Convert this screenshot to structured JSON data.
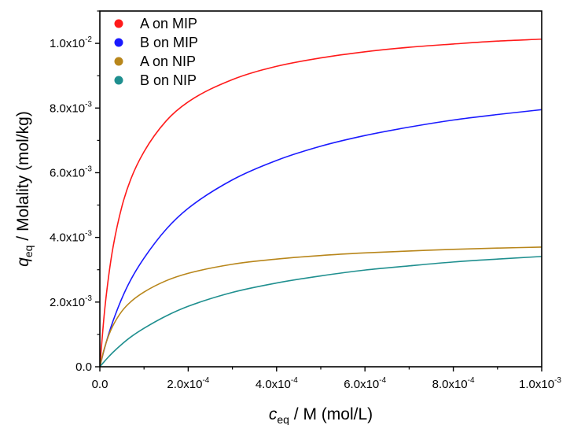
{
  "chart_data": {
    "type": "line",
    "xlabel": {
      "main": "c",
      "sub": "eq",
      "rest": " / M (mol/L)"
    },
    "ylabel": {
      "main": "q",
      "sub": "eq",
      "rest": " / Molality (mol/kg)"
    },
    "xlim": [
      0,
      0.001
    ],
    "ylim": [
      0,
      0.011
    ],
    "grid": false,
    "legend_position": "top-left",
    "xticks": [
      {
        "value": 0,
        "base": "0.0",
        "exp": ""
      },
      {
        "value": 0.0002,
        "base": "2.0x10",
        "exp": "-4"
      },
      {
        "value": 0.0004,
        "base": "4.0x10",
        "exp": "-4"
      },
      {
        "value": 0.0006,
        "base": "6.0x10",
        "exp": "-4"
      },
      {
        "value": 0.0008,
        "base": "8.0x10",
        "exp": "-4"
      },
      {
        "value": 0.001,
        "base": "1.0x10",
        "exp": "-3"
      }
    ],
    "yticks": [
      {
        "value": 0,
        "base": "0.0",
        "exp": ""
      },
      {
        "value": 0.002,
        "base": "2.0x10",
        "exp": "-3"
      },
      {
        "value": 0.004,
        "base": "4.0x10",
        "exp": "-3"
      },
      {
        "value": 0.006,
        "base": "6.0x10",
        "exp": "-3"
      },
      {
        "value": 0.008,
        "base": "8.0x10",
        "exp": "-3"
      },
      {
        "value": 0.01,
        "base": "1.0x10",
        "exp": "-2"
      }
    ],
    "x": [
      0,
      1e-05,
      2e-05,
      3e-05,
      5e-05,
      7e-05,
      0.0001,
      0.00015,
      0.0002,
      0.0003,
      0.0004,
      0.0005,
      0.0006,
      0.0007,
      0.0008,
      0.0009,
      0.001
    ],
    "series": [
      {
        "name": "A on MIP",
        "color": "#ff1a1a",
        "values": [
          0,
          0.00163,
          0.00281,
          0.00371,
          0.00496,
          0.0058,
          0.00665,
          0.0076,
          0.00819,
          0.00888,
          0.00929,
          0.00955,
          0.00974,
          0.00988,
          0.00998,
          0.01007,
          0.01013
        ]
      },
      {
        "name": "B on MIP",
        "color": "#1a1aff",
        "values": [
          0,
          0.00054,
          0.00101,
          0.00142,
          0.00212,
          0.00269,
          0.00336,
          0.00425,
          0.0049,
          0.00578,
          0.00638,
          0.00682,
          0.00715,
          0.00741,
          0.00763,
          0.0078,
          0.00795
        ]
      },
      {
        "name": "A on NIP",
        "color": "#b8861b",
        "values": [
          0,
          0.00056,
          0.00097,
          0.00128,
          0.00172,
          0.00201,
          0.00231,
          0.00266,
          0.00289,
          0.00317,
          0.00333,
          0.00344,
          0.00352,
          0.00358,
          0.00363,
          0.00367,
          0.0037
        ]
      },
      {
        "name": "B on NIP",
        "color": "#1f8f8f",
        "values": [
          0,
          0.00016,
          0.00031,
          0.00045,
          0.0007,
          0.00092,
          0.00119,
          0.00157,
          0.00187,
          0.0023,
          0.00259,
          0.00281,
          0.00299,
          0.00312,
          0.00324,
          0.00333,
          0.00341
        ]
      }
    ]
  }
}
